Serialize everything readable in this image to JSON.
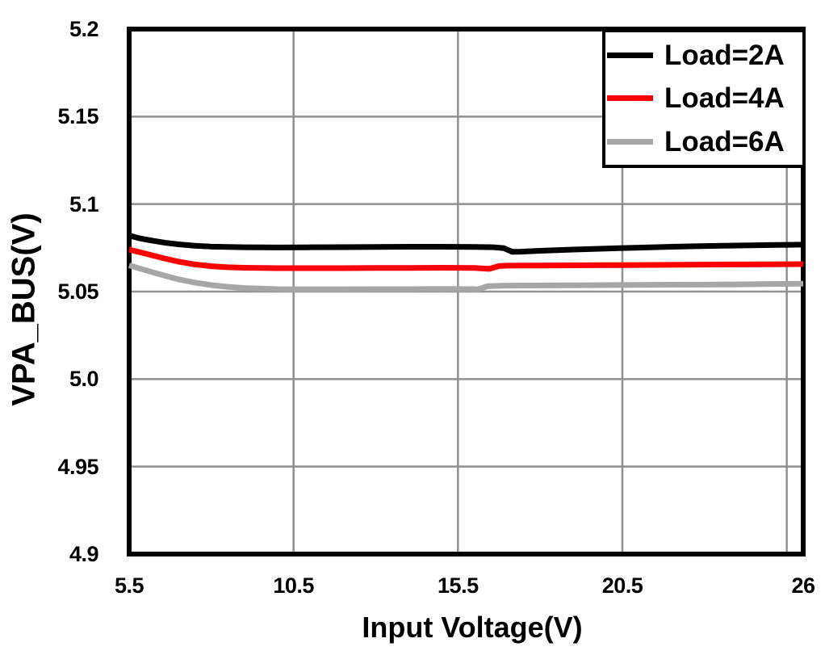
{
  "chart_data": {
    "type": "line",
    "title": "",
    "xlabel": "Input Voltage(V)",
    "ylabel": "VPA_BUS(V)",
    "xlim": [
      5.5,
      26
    ],
    "ylim": [
      4.9,
      5.2
    ],
    "grid": true,
    "grid_color": "#8f8f8f",
    "axis_color": "#000000",
    "background_color": "#ffffff",
    "line_width": 7,
    "x_ticks": [
      {
        "label": "5.5",
        "value": 5.5
      },
      {
        "label": "10.5",
        "value": 10.5
      },
      {
        "label": "15.5",
        "value": 15.5
      },
      {
        "label": "20.5",
        "value": 20.5
      },
      {
        "label": "26",
        "value": 26
      }
    ],
    "y_ticks": [
      {
        "label": "5.2",
        "value": 5.2
      },
      {
        "label": "5.15",
        "value": 5.15
      },
      {
        "label": "5.1",
        "value": 5.1
      },
      {
        "label": "5.05",
        "value": 5.05
      },
      {
        "label": "5.0",
        "value": 5.0
      },
      {
        "label": "4.95",
        "value": 4.95
      },
      {
        "label": "4.9",
        "value": 4.9
      }
    ],
    "x_gridlines": [
      10.5,
      15.5,
      20.5,
      25.5
    ],
    "y_gridlines": [
      5.15,
      5.1,
      5.05,
      5.0,
      4.95
    ],
    "legend": {
      "position": "top-right",
      "border_color": "#000000",
      "background": "#ffffff"
    },
    "series": [
      {
        "name": "Load=2A",
        "color": "#000000",
        "x": [
          5.5,
          5.8,
          6.2,
          6.6,
          7.0,
          7.5,
          8,
          9,
          10,
          11,
          12,
          13,
          14,
          15,
          16,
          16.6,
          16.9,
          17.15,
          17.4,
          18,
          19,
          20,
          21,
          22,
          23,
          24,
          25,
          26
        ],
        "y": [
          5.082,
          5.0805,
          5.0791,
          5.0779,
          5.077,
          5.0762,
          5.0757,
          5.0753,
          5.0752,
          5.0753,
          5.0754,
          5.0755,
          5.0756,
          5.0756,
          5.0755,
          5.0753,
          5.0748,
          5.0727,
          5.0728,
          5.0733,
          5.074,
          5.0746,
          5.0751,
          5.0756,
          5.076,
          5.0763,
          5.0766,
          5.0768
        ]
      },
      {
        "name": "Load=4A",
        "color": "#ff0000",
        "x": [
          5.5,
          5.8,
          6.2,
          6.6,
          7.0,
          7.5,
          8,
          8.5,
          9,
          10,
          11,
          12,
          13,
          14,
          15,
          16,
          16.45,
          16.75,
          17,
          17.5,
          18,
          19,
          20,
          21,
          22,
          23,
          24,
          25,
          26
        ],
        "y": [
          5.074,
          5.0726,
          5.0707,
          5.0688,
          5.0671,
          5.0655,
          5.0645,
          5.0639,
          5.0636,
          5.0634,
          5.0634,
          5.0634,
          5.0635,
          5.0635,
          5.0636,
          5.0635,
          5.063,
          5.0646,
          5.0648,
          5.0649,
          5.0649,
          5.065,
          5.0651,
          5.0652,
          5.0653,
          5.0654,
          5.0655,
          5.0656,
          5.0657
        ]
      },
      {
        "name": "Load=6A",
        "color": "#a6a6a6",
        "x": [
          5.5,
          5.8,
          6.2,
          6.6,
          7.0,
          7.5,
          8,
          8.5,
          9,
          10,
          11,
          12,
          13,
          14,
          15,
          16,
          16.1,
          16.4,
          17,
          18,
          19,
          20,
          21,
          22,
          23,
          24,
          25,
          26
        ],
        "y": [
          5.065,
          5.0633,
          5.0611,
          5.059,
          5.057,
          5.0551,
          5.0537,
          5.0527,
          5.052,
          5.0514,
          5.0513,
          5.0513,
          5.0514,
          5.0514,
          5.0515,
          5.0514,
          5.0512,
          5.0531,
          5.0534,
          5.0535,
          5.0536,
          5.0537,
          5.0538,
          5.0539,
          5.054,
          5.0541,
          5.0543,
          5.0545
        ]
      }
    ]
  }
}
